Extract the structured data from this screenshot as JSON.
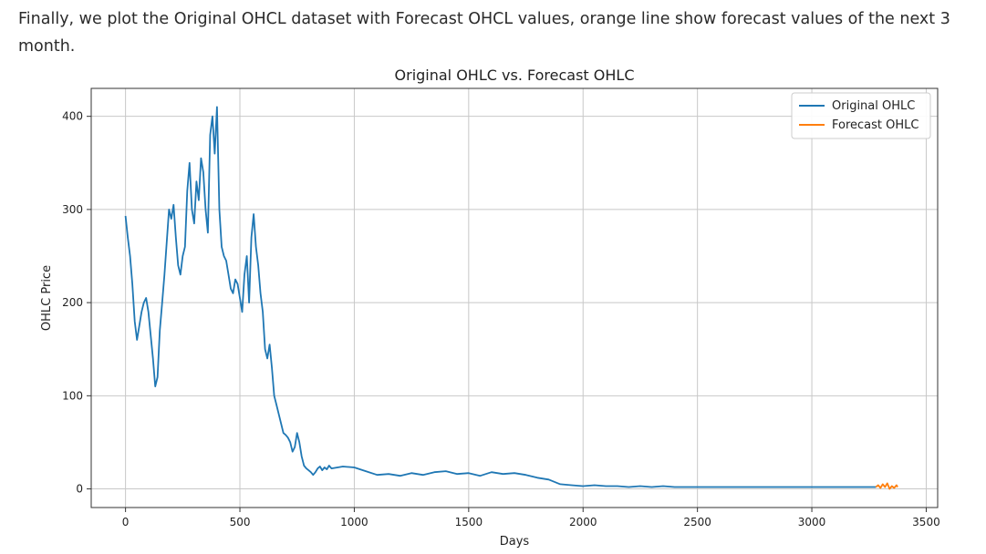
{
  "intro_text": "Finally, we plot the Original OHCL dataset with Forecast OHCL values, orange line show forecast values of the next 3 month.",
  "chart_data": {
    "type": "line",
    "title": "Original OHLC vs. Forecast OHLC",
    "xlabel": "Days",
    "ylabel": "OHLC Price",
    "xlim": [
      -150,
      3550
    ],
    "ylim": [
      -20,
      430
    ],
    "xticks": [
      0,
      500,
      1000,
      1500,
      2000,
      2500,
      3000,
      3500
    ],
    "yticks": [
      0,
      100,
      200,
      300,
      400
    ],
    "grid": true,
    "legend_position": "top-right",
    "series": [
      {
        "name": "Original OHLC",
        "color": "#1f77b4",
        "x": [
          0,
          10,
          20,
          30,
          40,
          50,
          60,
          70,
          80,
          90,
          100,
          110,
          120,
          130,
          140,
          150,
          160,
          170,
          180,
          190,
          200,
          210,
          220,
          230,
          240,
          250,
          260,
          270,
          280,
          290,
          300,
          310,
          320,
          330,
          340,
          350,
          360,
          370,
          380,
          390,
          400,
          410,
          420,
          430,
          440,
          450,
          460,
          470,
          480,
          490,
          500,
          510,
          520,
          530,
          540,
          550,
          560,
          570,
          580,
          590,
          600,
          610,
          620,
          630,
          640,
          650,
          660,
          670,
          680,
          690,
          700,
          710,
          720,
          730,
          740,
          750,
          760,
          770,
          780,
          790,
          800,
          810,
          820,
          830,
          840,
          850,
          860,
          870,
          880,
          890,
          900,
          950,
          1000,
          1050,
          1100,
          1150,
          1200,
          1250,
          1300,
          1350,
          1400,
          1450,
          1500,
          1550,
          1600,
          1650,
          1700,
          1750,
          1800,
          1850,
          1900,
          1950,
          2000,
          2050,
          2100,
          2150,
          2200,
          2250,
          2300,
          2350,
          2400,
          2450,
          2500,
          2550,
          2600,
          2700,
          2800,
          2900,
          3000,
          3100,
          3200,
          3280
        ],
        "y": [
          293,
          270,
          250,
          220,
          180,
          160,
          175,
          190,
          200,
          205,
          190,
          165,
          140,
          110,
          120,
          170,
          200,
          230,
          265,
          300,
          290,
          305,
          270,
          240,
          230,
          250,
          260,
          320,
          350,
          300,
          285,
          330,
          310,
          355,
          340,
          300,
          275,
          380,
          400,
          360,
          410,
          300,
          260,
          250,
          245,
          230,
          215,
          210,
          225,
          220,
          205,
          190,
          230,
          250,
          200,
          270,
          295,
          260,
          240,
          210,
          190,
          150,
          140,
          155,
          130,
          100,
          90,
          80,
          70,
          60,
          58,
          55,
          50,
          40,
          45,
          60,
          50,
          35,
          25,
          22,
          20,
          18,
          15,
          18,
          22,
          24,
          20,
          23,
          21,
          25,
          22,
          24,
          23,
          19,
          15,
          16,
          14,
          17,
          15,
          18,
          19,
          16,
          17,
          14,
          18,
          16,
          17,
          15,
          12,
          10,
          5,
          4,
          3,
          4,
          3,
          3,
          2,
          3,
          2,
          3,
          2,
          2,
          2,
          2,
          2,
          2,
          2,
          2,
          2,
          2,
          2,
          2
        ]
      },
      {
        "name": "Forecast OHLC",
        "color": "#ff7f0e",
        "x": [
          3280,
          3290,
          3300,
          3310,
          3320,
          3330,
          3340,
          3350,
          3360,
          3370,
          3375
        ],
        "y": [
          2,
          4,
          1,
          5,
          2,
          6,
          0,
          3,
          1,
          4,
          2
        ]
      }
    ]
  }
}
